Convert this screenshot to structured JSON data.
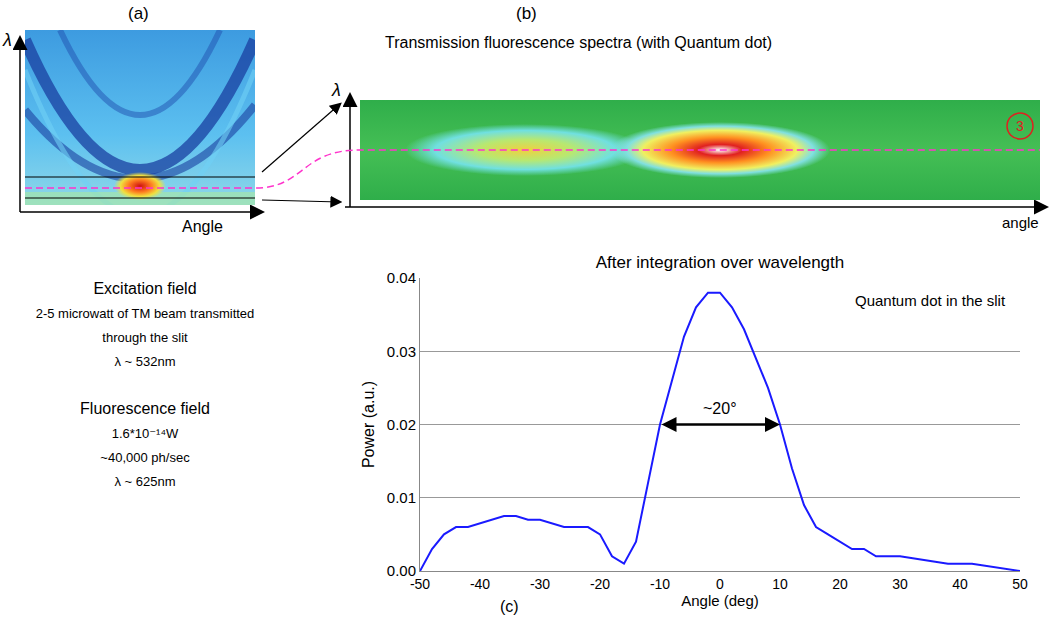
{
  "panel_labels": {
    "a": "(a)",
    "b": "(b)",
    "c": "(c)"
  },
  "panel_a": {
    "y_label": "λ",
    "x_label": "Angle"
  },
  "panel_b": {
    "title": "Transmission fluorescence spectra (with Quantum dot)",
    "y_label": "λ",
    "x_label": "angle",
    "corner_mark": "3"
  },
  "notes": [
    {
      "heading": "Excitation field",
      "lines": [
        "2-5 microwatt of TM beam transmitted through the slit",
        "λ ~ 532nm"
      ]
    },
    {
      "heading": "Fluorescence field",
      "lines": [
        "1.6*10⁻¹⁴W",
        "~40,000 ph/sec",
        "λ ~ 625nm"
      ]
    }
  ],
  "chart_data": {
    "type": "line",
    "title": "After integration over wavelength",
    "x_label": "Angle (deg)",
    "y_label": "Power (a.u.)",
    "x": [
      -50,
      -48,
      -46,
      -44,
      -42,
      -40,
      -38,
      -36,
      -34,
      -32,
      -30,
      -28,
      -26,
      -24,
      -22,
      -20,
      -18,
      -16,
      -14,
      -12,
      -10,
      -8,
      -6,
      -4,
      -2,
      0,
      2,
      4,
      6,
      8,
      10,
      12,
      14,
      16,
      18,
      20,
      22,
      24,
      26,
      28,
      30,
      34,
      38,
      42,
      46,
      50
    ],
    "values": [
      0.0,
      0.003,
      0.005,
      0.006,
      0.006,
      0.0065,
      0.007,
      0.0075,
      0.0075,
      0.007,
      0.007,
      0.0065,
      0.006,
      0.006,
      0.006,
      0.005,
      0.002,
      0.001,
      0.004,
      0.012,
      0.02,
      0.026,
      0.032,
      0.036,
      0.038,
      0.038,
      0.036,
      0.033,
      0.029,
      0.025,
      0.02,
      0.014,
      0.009,
      0.006,
      0.005,
      0.004,
      0.003,
      0.003,
      0.002,
      0.002,
      0.002,
      0.0015,
      0.001,
      0.001,
      0.0005,
      0.0
    ],
    "color": "#1a1aff",
    "xlim": [
      -50,
      50
    ],
    "xticks": [
      -50,
      -40,
      -30,
      -20,
      -10,
      0,
      10,
      20,
      30,
      40,
      50
    ],
    "ylim": [
      0,
      0.04
    ],
    "yticks": [
      {
        "value": 0,
        "label": "0.00"
      },
      {
        "value": 0.01,
        "label": "0.01"
      },
      {
        "value": 0.02,
        "label": "0.02"
      },
      {
        "value": 0.03,
        "label": "0.03"
      },
      {
        "value": 0.04,
        "label": "0.04"
      }
    ],
    "grid": true,
    "annotations": [
      {
        "text": "Quantum dot in the slit"
      },
      {
        "text": "~20°",
        "x_from": -10,
        "x_to": 10,
        "y": 0.02
      }
    ]
  }
}
